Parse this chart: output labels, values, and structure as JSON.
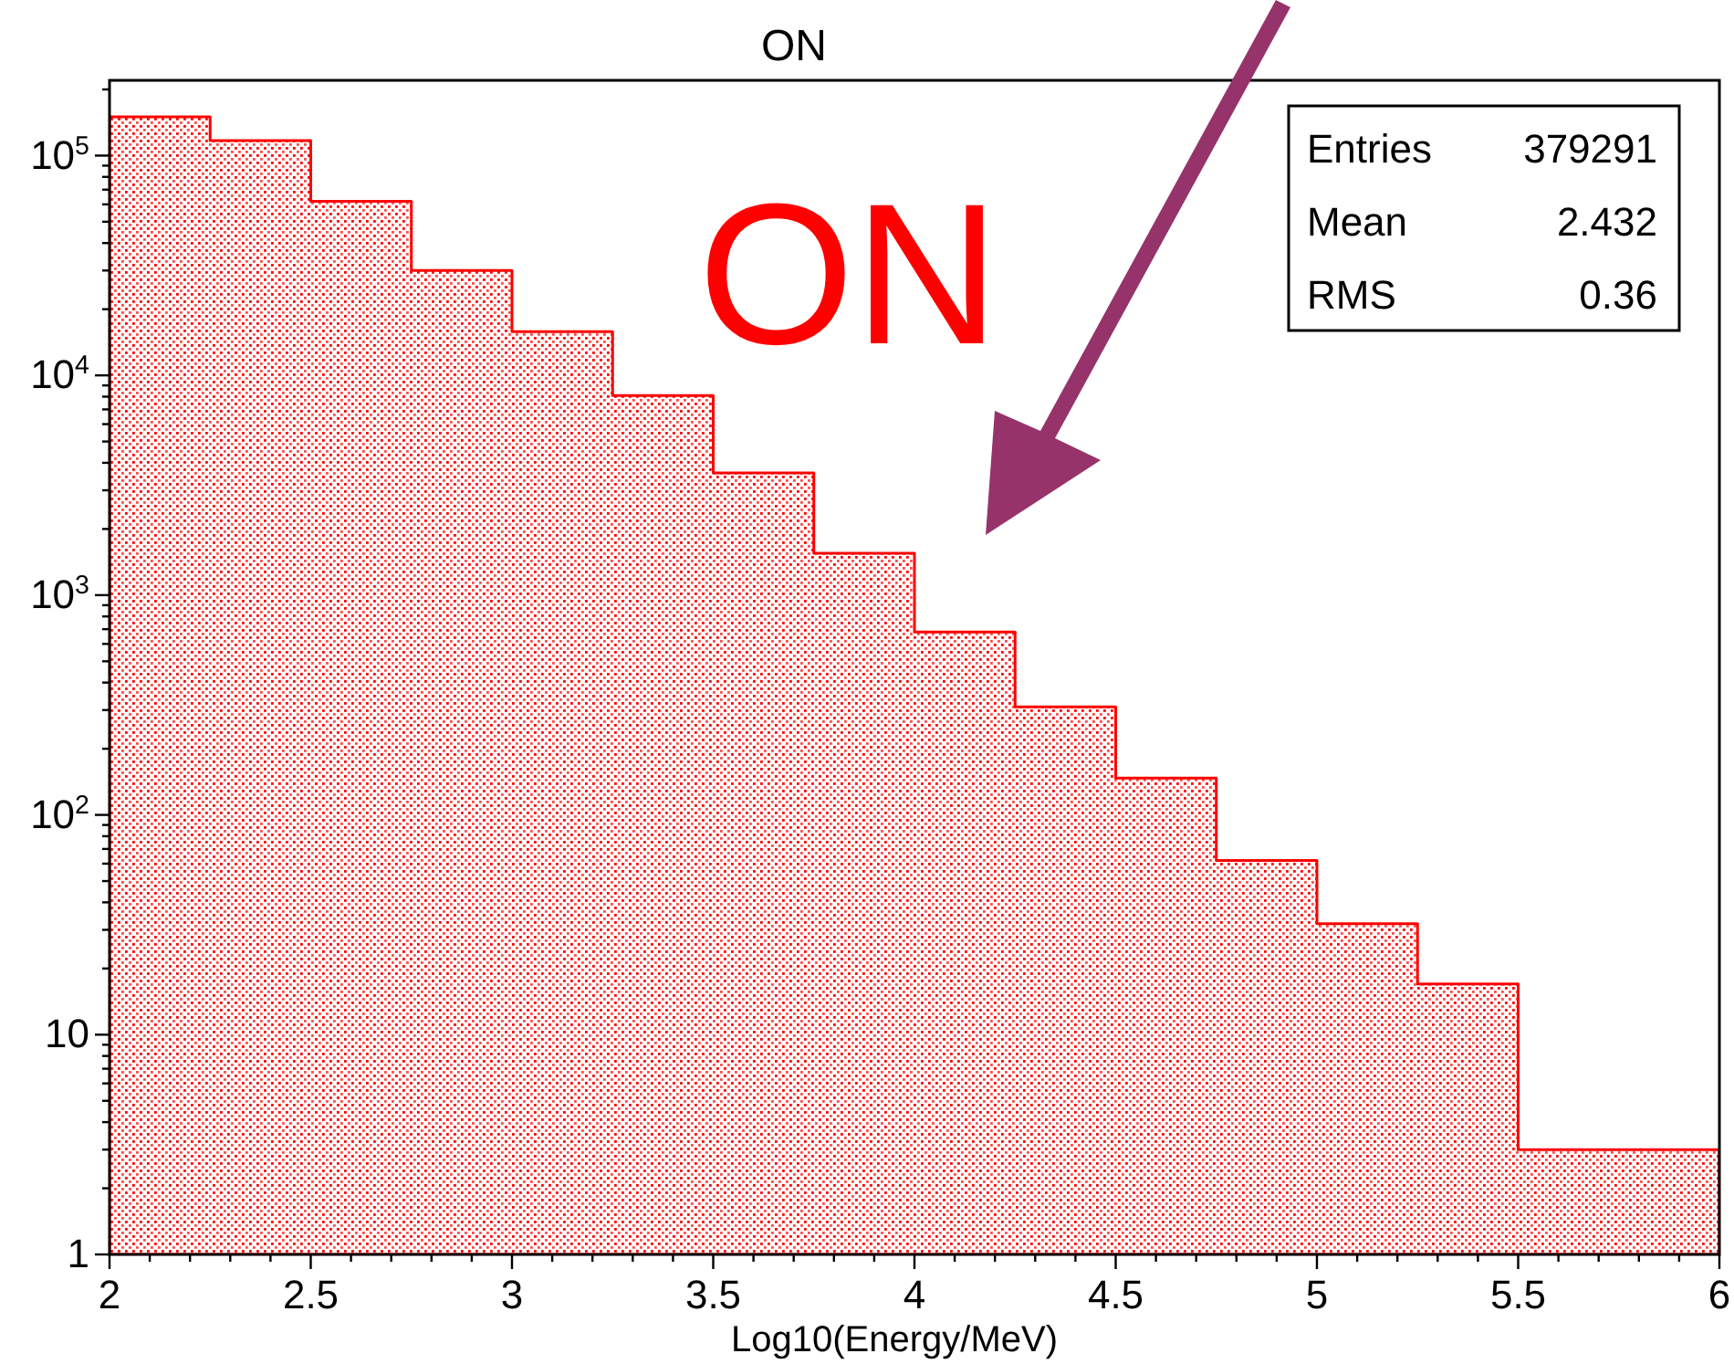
{
  "chart_data": {
    "type": "histogram",
    "title": "ON",
    "xlabel": "Log10(Energy/MeV)",
    "bins": [
      2,
      2.25,
      2.5,
      2.75,
      3,
      3.25,
      3.5,
      3.75,
      4,
      4.25,
      4.5,
      4.75,
      5,
      5.25,
      5.5,
      5.75,
      6
    ],
    "values": [
      150000,
      117000,
      62000,
      30000,
      15800,
      8100,
      3600,
      1550,
      680,
      310,
      147,
      62,
      32,
      17,
      3,
      3
    ],
    "color": "#ff0000",
    "log": true,
    "xlim": [
      2,
      6
    ],
    "xticks": [
      2,
      {
        "value": 2.1,
        "label": null
      },
      {
        "value": 2.2,
        "label": null
      },
      {
        "value": 2.3,
        "label": null
      },
      {
        "value": 2.4,
        "label": null
      },
      2.5,
      {
        "value": 2.6,
        "label": null
      },
      {
        "value": 2.7,
        "label": null
      },
      {
        "value": 2.8,
        "label": null
      },
      {
        "value": 2.9,
        "label": null
      },
      3,
      {
        "value": 3.1,
        "label": null
      },
      {
        "value": 3.2,
        "label": null
      },
      {
        "value": 3.3,
        "label": null
      },
      {
        "value": 3.4,
        "label": null
      },
      3.5,
      {
        "value": 3.6,
        "label": null
      },
      {
        "value": 3.7,
        "label": null
      },
      {
        "value": 3.8,
        "label": null
      },
      {
        "value": 3.9,
        "label": null
      },
      4,
      {
        "value": 4.1,
        "label": null
      },
      {
        "value": 4.2,
        "label": null
      },
      {
        "value": 4.3,
        "label": null
      },
      {
        "value": 4.4,
        "label": null
      },
      4.5,
      {
        "value": 4.6,
        "label": null
      },
      {
        "value": 4.7,
        "label": null
      },
      {
        "value": 4.8,
        "label": null
      },
      {
        "value": 4.9,
        "label": null
      },
      5,
      {
        "value": 5.1,
        "label": null
      },
      {
        "value": 5.2,
        "label": null
      },
      {
        "value": 5.3,
        "label": null
      },
      {
        "value": 5.4,
        "label": null
      },
      5.5,
      {
        "value": 5.6,
        "label": null
      },
      {
        "value": 5.7,
        "label": null
      },
      {
        "value": 5.8,
        "label": null
      },
      {
        "value": 5.9,
        "label": null
      },
      6
    ],
    "ylim": [
      1,
      220000
    ],
    "yticks": [
      1,
      {
        "value": 2,
        "label": null
      },
      {
        "value": 3,
        "label": null
      },
      {
        "value": 4,
        "label": null
      },
      {
        "value": 5,
        "label": null
      },
      {
        "value": 6,
        "label": null
      },
      {
        "value": 7,
        "label": null
      },
      {
        "value": 8,
        "label": null
      },
      {
        "value": 9,
        "label": null
      },
      10,
      {
        "value": 20,
        "label": null
      },
      {
        "value": 30,
        "label": null
      },
      {
        "value": 40,
        "label": null
      },
      {
        "value": 50,
        "label": null
      },
      {
        "value": 60,
        "label": null
      },
      {
        "value": 70,
        "label": null
      },
      {
        "value": 80,
        "label": null
      },
      {
        "value": 90,
        "label": null
      },
      {
        "value": 100,
        "label": "10$^{2}$"
      },
      {
        "value": 200,
        "label": null
      },
      {
        "value": 300,
        "label": null
      },
      {
        "value": 400,
        "label": null
      },
      {
        "value": 500,
        "label": null
      },
      {
        "value": 600,
        "label": null
      },
      {
        "value": 700,
        "label": null
      },
      {
        "value": 800,
        "label": null
      },
      {
        "value": 900,
        "label": null
      },
      {
        "value": 1000,
        "label": "10$^{3}$"
      },
      {
        "value": 2000,
        "label": null
      },
      {
        "value": 3000,
        "label": null
      },
      {
        "value": 4000,
        "label": null
      },
      {
        "value": 5000,
        "label": null
      },
      {
        "value": 6000,
        "label": null
      },
      {
        "value": 7000,
        "label": null
      },
      {
        "value": 8000,
        "label": null
      },
      {
        "value": 9000,
        "label": null
      },
      {
        "value": 10000,
        "label": "10$^{4}$"
      },
      {
        "value": 20000,
        "label": null
      },
      {
        "value": 30000,
        "label": null
      },
      {
        "value": 40000,
        "label": null
      },
      {
        "value": 50000,
        "label": null
      },
      {
        "value": 60000,
        "label": null
      },
      {
        "value": 70000,
        "label": null
      },
      {
        "value": 80000,
        "label": null
      },
      {
        "value": 90000,
        "label": null
      },
      {
        "value": 100000,
        "label": "10$^{5}$"
      },
      {
        "value": 200000,
        "label": null
      }
    ],
    "annotations": [
      "Entries",
      "379291",
      "Mean",
      "2.432",
      "RMS",
      "0.36",
      "ON"
    ]
  }
}
